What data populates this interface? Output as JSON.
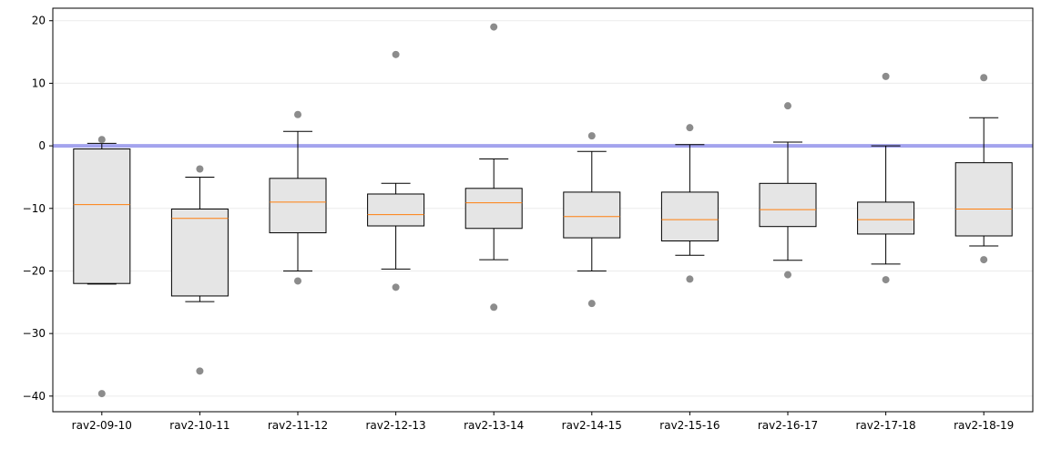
{
  "chart_data": {
    "type": "box",
    "title": "",
    "xlabel": "",
    "ylabel": "",
    "ylim": [
      -42.5,
      22
    ],
    "yticks": [
      20,
      10,
      0,
      -10,
      -20,
      -30,
      -40
    ],
    "ytick_labels": [
      "20",
      "10",
      "0",
      "−10",
      "−20",
      "−30",
      "−40"
    ],
    "grid": "horizontal",
    "reference_line": {
      "y": 0,
      "color": "#a3a3ee"
    },
    "colors": {
      "box_fill": "#e5e5e5",
      "median": "#ff7f0e",
      "outlier": "#8c8c8c",
      "grid": "#ebebeb"
    },
    "categories": [
      "rav2-09-10",
      "rav2-10-11",
      "rav2-11-12",
      "rav2-12-13",
      "rav2-13-14",
      "rav2-14-15",
      "rav2-15-16",
      "rav2-16-17",
      "rav2-17-18",
      "rav2-18-19"
    ],
    "boxes": [
      {
        "whisker_low": -22.1,
        "q1": -22.0,
        "median": -9.4,
        "q3": -0.5,
        "whisker_high": 0.4,
        "outliers": [
          1.0,
          -39.6
        ]
      },
      {
        "whisker_low": -24.9,
        "q1": -24.0,
        "median": -11.6,
        "q3": -10.1,
        "whisker_high": -5.0,
        "outliers": [
          -3.7,
          -36.0
        ]
      },
      {
        "whisker_low": -20.0,
        "q1": -13.9,
        "median": -9.0,
        "q3": -5.2,
        "whisker_high": 2.3,
        "outliers": [
          5.0,
          -21.6
        ]
      },
      {
        "whisker_low": -19.7,
        "q1": -12.8,
        "median": -11.0,
        "q3": -7.7,
        "whisker_high": -6.0,
        "outliers": [
          14.6,
          -22.6
        ]
      },
      {
        "whisker_low": -18.2,
        "q1": -13.2,
        "median": -9.1,
        "q3": -6.8,
        "whisker_high": -2.1,
        "outliers": [
          19.0,
          -25.8
        ]
      },
      {
        "whisker_low": -20.0,
        "q1": -14.7,
        "median": -11.3,
        "q3": -7.4,
        "whisker_high": -0.9,
        "outliers": [
          1.6,
          -25.2
        ]
      },
      {
        "whisker_low": -17.5,
        "q1": -15.2,
        "median": -11.8,
        "q3": -7.4,
        "whisker_high": 0.2,
        "outliers": [
          2.9,
          -21.3
        ]
      },
      {
        "whisker_low": -18.3,
        "q1": -12.9,
        "median": -10.2,
        "q3": -6.0,
        "whisker_high": 0.6,
        "outliers": [
          6.4,
          -20.6
        ]
      },
      {
        "whisker_low": -18.9,
        "q1": -14.1,
        "median": -11.8,
        "q3": -9.0,
        "whisker_high": 0.0,
        "outliers": [
          11.1,
          -21.4
        ]
      },
      {
        "whisker_low": -16.0,
        "q1": -14.4,
        "median": -10.1,
        "q3": -2.7,
        "whisker_high": 4.5,
        "outliers": [
          10.9,
          -18.2
        ]
      }
    ]
  }
}
